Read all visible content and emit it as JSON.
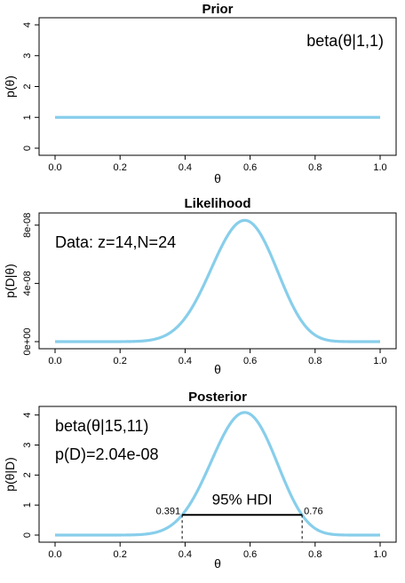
{
  "chart_data": [
    {
      "type": "line",
      "title": "Prior",
      "xlabel": "θ",
      "ylabel": "p(θ)",
      "xlim": [
        0,
        1
      ],
      "ylim": [
        0,
        4
      ],
      "xticks": [
        "0.0",
        "0.2",
        "0.4",
        "0.6",
        "0.8",
        "1.0"
      ],
      "yticks": [
        "0",
        "1",
        "2",
        "3",
        "4"
      ],
      "annotation": "beta(θ|1,1)",
      "curve": {
        "family": "beta",
        "a": 1,
        "b": 1
      },
      "line_color": "#87ceeb"
    },
    {
      "type": "line",
      "title": "Likelihood",
      "xlabel": "θ",
      "ylabel": "p(D|θ)",
      "xlim": [
        0,
        1
      ],
      "ylim": [
        0,
        8.35e-08
      ],
      "xticks": [
        "0.0",
        "0.2",
        "0.4",
        "0.6",
        "0.8",
        "1.0"
      ],
      "yticks": [
        "0e+00",
        "4e-08",
        "8e-08"
      ],
      "ytick_values": [
        0,
        4e-08,
        8e-08
      ],
      "annotation": "Data: z=14,N=24",
      "curve": {
        "family": "bernoulli-likelihood",
        "z": 14,
        "N": 24
      },
      "line_color": "#87ceeb"
    },
    {
      "type": "line",
      "title": "Posterior",
      "xlabel": "θ",
      "ylabel": "p(θ|D)",
      "xlim": [
        0,
        1
      ],
      "ylim": [
        0,
        4.05
      ],
      "xticks": [
        "0.0",
        "0.2",
        "0.4",
        "0.6",
        "0.8",
        "1.0"
      ],
      "yticks": [
        "0",
        "1",
        "2",
        "3",
        "4"
      ],
      "annotations": [
        "beta(θ|15,11)",
        "p(D)=2.04e-08"
      ],
      "curve": {
        "family": "beta",
        "a": 15,
        "b": 11
      },
      "hdi": {
        "label": "95% HDI",
        "low": 0.391,
        "high": 0.76,
        "low_label": "0.391",
        "high_label": "0.76"
      },
      "line_color": "#87ceeb"
    }
  ]
}
